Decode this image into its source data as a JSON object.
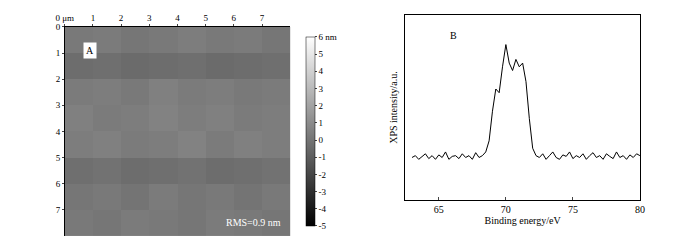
{
  "chart_data": [
    {
      "type": "heatmap",
      "annotations": [
        "A",
        "RMS=0.9 nm"
      ],
      "x": [
        0.5,
        1.5,
        2.5,
        3.5,
        4.5,
        5.5,
        6.5,
        7.5
      ],
      "y": [
        0.5,
        1.5,
        2.5,
        3.5,
        4.5,
        5.5,
        6.5,
        7.5
      ],
      "z": [
        [
          0.2,
          0.3,
          0.1,
          0.2,
          0.4,
          0.2,
          0.3,
          0.1
        ],
        [
          -0.3,
          -0.2,
          -0.4,
          -0.3,
          -0.2,
          -0.4,
          -0.3,
          -0.2
        ],
        [
          0.3,
          0.4,
          0.2,
          0.5,
          0.3,
          0.4,
          0.2,
          0.3
        ],
        [
          0.5,
          0.3,
          0.4,
          0.6,
          0.4,
          0.5,
          0.3,
          0.4
        ],
        [
          0.4,
          0.5,
          0.3,
          0.4,
          0.6,
          0.3,
          0.5,
          0.4
        ],
        [
          -0.2,
          -0.1,
          -0.3,
          -0.2,
          -0.1,
          -0.3,
          -0.2,
          -0.1
        ],
        [
          0.1,
          0.2,
          0.0,
          0.3,
          0.1,
          0.2,
          0.0,
          0.2
        ],
        [
          0.2,
          0.1,
          0.3,
          0.2,
          0.1,
          0.3,
          0.2,
          0.1
        ]
      ],
      "xlim": [
        0,
        8
      ],
      "ylim": [
        0,
        8
      ],
      "xticks": [
        {
          "value": 0,
          "label": "0 μm"
        },
        1,
        2,
        3,
        4,
        5,
        6,
        7
      ],
      "yticks": [
        0,
        1,
        2,
        3,
        4,
        5,
        6,
        7
      ],
      "zlim": [
        -5,
        6
      ],
      "zticks": [
        {
          "value": 6,
          "label": "6 nm"
        },
        5,
        4,
        3,
        2,
        1,
        0,
        -1,
        -2,
        -3,
        -4,
        -5
      ],
      "grid": false
    },
    {
      "type": "line",
      "annotations": [
        "B"
      ],
      "x_label": "Binding energy/eV",
      "y_label": "XPS intensity/a.u.",
      "x": [
        63,
        63.25,
        63.5,
        63.75,
        64,
        64.25,
        64.5,
        64.75,
        65,
        65.25,
        65.5,
        65.75,
        66,
        66.25,
        66.5,
        66.75,
        67,
        67.25,
        67.5,
        67.75,
        68,
        68.25,
        68.5,
        68.75,
        69,
        69.25,
        69.5,
        69.75,
        70,
        70.25,
        70.5,
        70.75,
        71,
        71.25,
        71.5,
        71.75,
        72,
        72.25,
        72.5,
        72.75,
        73,
        73.25,
        73.5,
        73.75,
        74,
        74.25,
        74.5,
        74.75,
        75,
        75.25,
        75.5,
        75.75,
        76,
        76.25,
        76.5,
        76.75,
        77,
        77.25,
        77.5,
        77.75,
        78,
        78.25,
        78.5,
        78.75,
        79,
        79.25,
        79.5,
        79.75,
        80
      ],
      "values": [
        1.15,
        1.2,
        1.1,
        1.18,
        1.25,
        1.12,
        1.2,
        1.1,
        1.22,
        1.15,
        1.3,
        1.1,
        1.18,
        1.2,
        1.12,
        1.25,
        1.15,
        1.2,
        1.1,
        1.28,
        1.15,
        1.2,
        1.3,
        1.6,
        2.4,
        3.0,
        2.9,
        3.6,
        4.2,
        3.7,
        3.5,
        3.8,
        3.6,
        3.7,
        3.2,
        2.2,
        1.4,
        1.2,
        1.15,
        1.25,
        1.1,
        1.2,
        1.3,
        1.15,
        1.1,
        1.22,
        1.18,
        1.3,
        1.12,
        1.2,
        1.15,
        1.25,
        1.1,
        1.2,
        1.28,
        1.15,
        1.2,
        1.1,
        1.25,
        1.18,
        1.12,
        1.3,
        1.15,
        1.2,
        1.1,
        1.22,
        1.15,
        1.25,
        1.2
      ],
      "color": "#000000",
      "xlim": [
        62.5,
        80
      ],
      "ylim": [
        0,
        5
      ],
      "xticks": [
        65,
        70,
        75,
        80
      ],
      "tick_labels": "x",
      "grid": false
    }
  ]
}
